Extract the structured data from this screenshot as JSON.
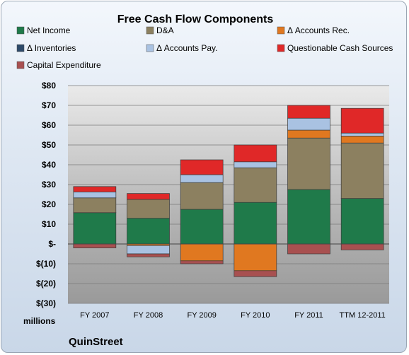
{
  "chart_data": {
    "type": "bar",
    "stacked": true,
    "title": "Free Cash Flow Components",
    "ylabel": "millions",
    "company": "QuinStreet",
    "ylim": [
      -30,
      80
    ],
    "yticks": [
      -30,
      -20,
      -10,
      0,
      10,
      20,
      30,
      40,
      50,
      60,
      70,
      80
    ],
    "ytick_labels": [
      "$(30)",
      "$(20)",
      "$(10)",
      "$-",
      "$10",
      "$20",
      "$30",
      "$40",
      "$50",
      "$60",
      "$70",
      "$80"
    ],
    "categories": [
      "FY 2007",
      "FY 2008",
      "FY 2009",
      "FY 2010",
      "FY 2011",
      "TTM 12-2011"
    ],
    "legend_position": "top",
    "grid": true,
    "series": [
      {
        "name": "Net Income",
        "color": "#1f7a4a",
        "values": [
          15.8,
          13.0,
          17.5,
          21.0,
          27.5,
          23.0
        ]
      },
      {
        "name": "D&A",
        "color": "#8c8060",
        "values": [
          7.5,
          9.5,
          13.5,
          17.5,
          26.0,
          28.0
        ]
      },
      {
        "name": "Δ Accounts Rec.",
        "color": "#e07820",
        "values": [
          0,
          -0.8,
          -8.5,
          -13.5,
          4.0,
          3.5
        ]
      },
      {
        "name": "Δ Inventories",
        "color": "#2d4a6a",
        "values": [
          0,
          0,
          0,
          0,
          0,
          0
        ]
      },
      {
        "name": "Δ Accounts Pay.",
        "color": "#a9c2e2",
        "values": [
          3.0,
          -4.2,
          4.0,
          3.0,
          6.0,
          1.5
        ]
      },
      {
        "name": "Questionable Cash Sources",
        "color": "#e02828",
        "values": [
          2.7,
          3.0,
          7.5,
          8.5,
          6.5,
          12.5
        ]
      },
      {
        "name": "Capital Expenditure",
        "color": "#a85050",
        "values": [
          -2.0,
          -1.5,
          -1.5,
          -3.0,
          -5.0,
          -3.0
        ]
      }
    ]
  }
}
